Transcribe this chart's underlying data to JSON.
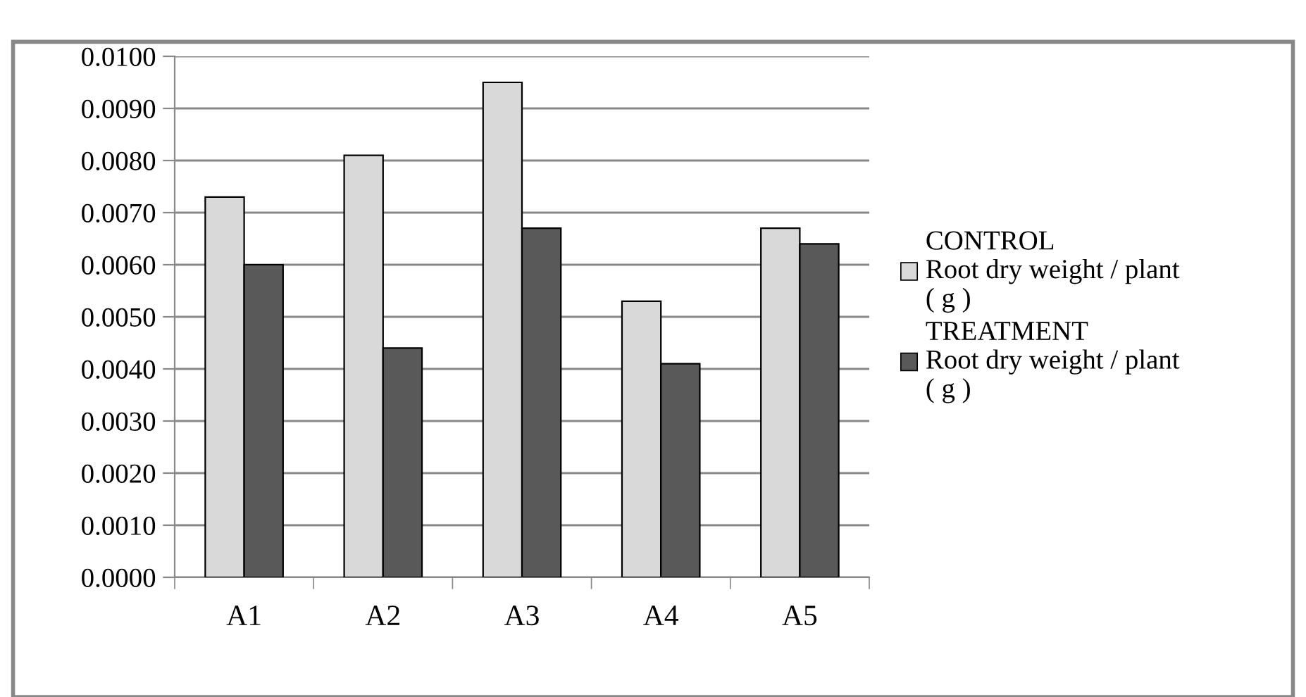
{
  "chart_data": {
    "type": "bar",
    "categories": [
      "A1",
      "A2",
      "A3",
      "A4",
      "A5"
    ],
    "series": [
      {
        "name": "CONTROL\nRoot dry weight / plant\n( g )",
        "color": "#d9d9d9",
        "values": [
          0.0073,
          0.0081,
          0.0095,
          0.0053,
          0.0067
        ]
      },
      {
        "name": "TREATMENT\nRoot dry weight / plant\n( g )",
        "color": "#595959",
        "values": [
          0.006,
          0.0044,
          0.0067,
          0.0041,
          0.0064
        ]
      }
    ],
    "ylim": [
      0,
      0.01
    ],
    "yticks": [
      {
        "value": 0,
        "label": "0.0000"
      },
      {
        "value": 0.001,
        "label": "0.0010"
      },
      {
        "value": 0.002,
        "label": "0.0020"
      },
      {
        "value": 0.003,
        "label": "0.0030"
      },
      {
        "value": 0.004,
        "label": "0.0040"
      },
      {
        "value": 0.005,
        "label": "0.0050"
      },
      {
        "value": 0.006,
        "label": "0.0060"
      },
      {
        "value": 0.007,
        "label": "0.0070"
      },
      {
        "value": 0.008,
        "label": "0.0080"
      },
      {
        "value": 0.009,
        "label": "0.0090"
      },
      {
        "value": 0.01,
        "label": "0.0100"
      }
    ],
    "grid": "y",
    "legend": "right"
  }
}
